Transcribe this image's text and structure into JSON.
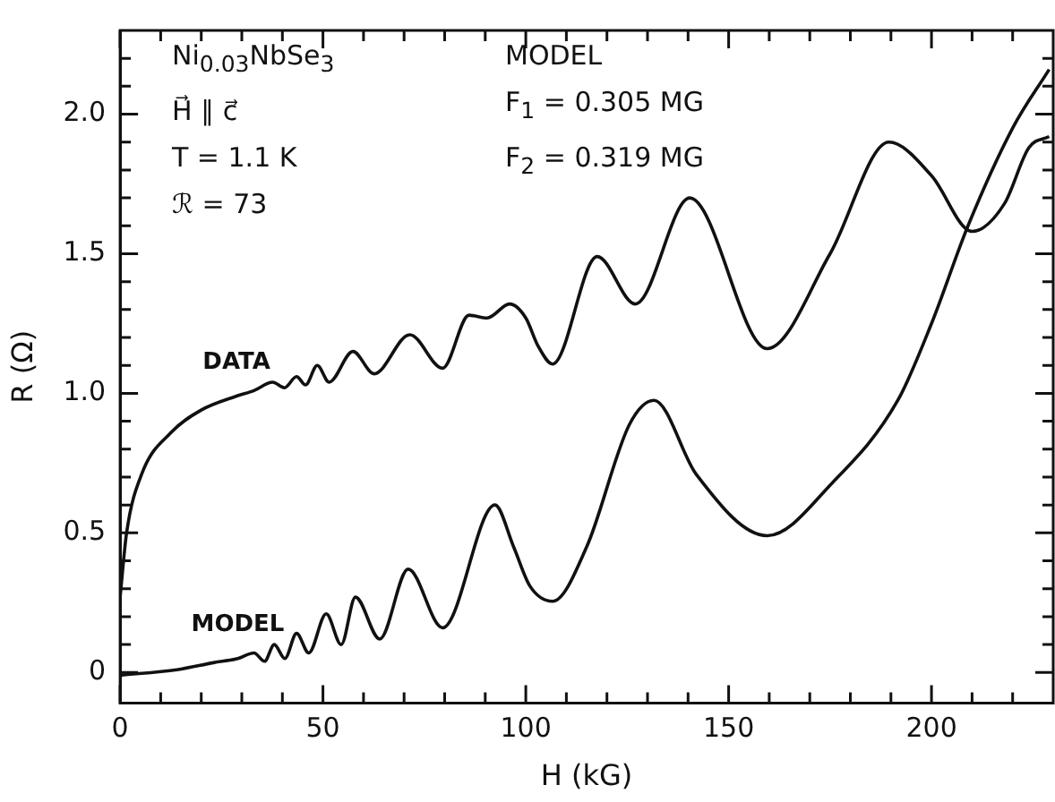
{
  "chart_data": {
    "type": "line",
    "xlabel": "H (kG)",
    "ylabel": "R (Ω)",
    "annotations": [
      "Ni$_{0.03}$NbSe$_{3}$",
      "H⃗ ∥ c⃗",
      "T = 1.1 K",
      "ℛ = 73",
      "MODEL",
      "F$_{1}$ = 0.305 MG",
      "F$_{2}$ = 0.319 MG"
    ],
    "xlim": [
      0,
      230
    ],
    "ylim": [
      -0.11,
      2.3
    ],
    "xticks": [
      0,
      {
        "value": 10,
        "label": null
      },
      {
        "value": 20,
        "label": null
      },
      {
        "value": 30,
        "label": null
      },
      {
        "value": 40,
        "label": null
      },
      50,
      {
        "value": 60,
        "label": null
      },
      {
        "value": 70,
        "label": null
      },
      {
        "value": 80,
        "label": null
      },
      {
        "value": 90,
        "label": null
      },
      100,
      {
        "value": 110,
        "label": null
      },
      {
        "value": 120,
        "label": null
      },
      {
        "value": 130,
        "label": null
      },
      {
        "value": 140,
        "label": null
      },
      150,
      {
        "value": 160,
        "label": null
      },
      {
        "value": 170,
        "label": null
      },
      {
        "value": 180,
        "label": null
      },
      {
        "value": 190,
        "label": null
      },
      200,
      {
        "value": 210,
        "label": null
      },
      {
        "value": 220,
        "label": null
      }
    ],
    "yticks": [
      0,
      {
        "value": 0.1,
        "label": null
      },
      {
        "value": 0.2,
        "label": null
      },
      {
        "value": 0.3,
        "label": null
      },
      {
        "value": 0.4,
        "label": null
      },
      {
        "value": 0.5,
        "label": "0.5"
      },
      {
        "value": 0.6,
        "label": null
      },
      {
        "value": 0.7,
        "label": null
      },
      {
        "value": 0.8,
        "label": null
      },
      {
        "value": 0.9,
        "label": null
      },
      {
        "value": 1.0,
        "label": "1.0"
      },
      {
        "value": 1.1,
        "label": null
      },
      {
        "value": 1.2,
        "label": null
      },
      {
        "value": 1.3,
        "label": null
      },
      {
        "value": 1.4,
        "label": null
      },
      {
        "value": 1.5,
        "label": "1.5"
      },
      {
        "value": 1.6,
        "label": null
      },
      {
        "value": 1.7,
        "label": null
      },
      {
        "value": 1.8,
        "label": null
      },
      {
        "value": 1.9,
        "label": null
      },
      {
        "value": 2.0,
        "label": "2.0"
      },
      {
        "value": 2.1,
        "label": null
      },
      {
        "value": 2.2,
        "label": null
      }
    ],
    "grid": false,
    "legend": false,
    "marker": "none",
    "line_style": "solid",
    "series": [
      {
        "name": "DATA",
        "color": "#111111",
        "x": [
          0,
          1.6,
          5.3,
          12.6,
          20,
          28.7,
          33,
          37.6,
          40.5,
          43.5,
          45.7,
          48.6,
          51.5,
          57.4,
          62.6,
          71.4,
          79.5,
          86,
          90.5,
          96,
          100,
          103,
          106.6,
          117.6,
          127,
          140.4,
          159.5,
          175,
          189.5,
          200,
          210,
          218,
          224,
          229
        ],
        "values": [
          0.27,
          0.5,
          0.71,
          0.86,
          0.94,
          0.99,
          1.01,
          1.04,
          1.02,
          1.06,
          1.03,
          1.1,
          1.04,
          1.15,
          1.07,
          1.21,
          1.09,
          1.28,
          1.27,
          1.32,
          1.27,
          1.17,
          1.105,
          1.49,
          1.32,
          1.7,
          1.16,
          1.5,
          1.9,
          1.78,
          1.58,
          1.68,
          1.88,
          1.92
        ]
      },
      {
        "name": "MODEL",
        "color": "#111111",
        "x": [
          0,
          14,
          23,
          29,
          33,
          35.6,
          38,
          40.6,
          43.5,
          46.5,
          50.8,
          54.5,
          58,
          64,
          71,
          79.5,
          92.4,
          97,
          101,
          106.6,
          115,
          125.6,
          131.6,
          142,
          159.5,
          175.6,
          191.7,
          200,
          209,
          220,
          229
        ],
        "values": [
          -0.01,
          0.01,
          0.035,
          0.05,
          0.07,
          0.04,
          0.1,
          0.05,
          0.14,
          0.07,
          0.21,
          0.1,
          0.27,
          0.12,
          0.37,
          0.16,
          0.6,
          0.45,
          0.31,
          0.255,
          0.45,
          0.89,
          0.975,
          0.71,
          0.49,
          0.68,
          0.975,
          1.25,
          1.6,
          1.95,
          2.16
        ]
      }
    ]
  }
}
